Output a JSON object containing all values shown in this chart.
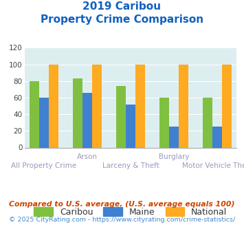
{
  "title_line1": "2019 Caribou",
  "title_line2": "Property Crime Comparison",
  "x_labels_row1": [
    "",
    "Arson",
    "",
    "Burglary",
    ""
  ],
  "x_labels_row2": [
    "All Property Crime",
    "",
    "Larceny & Theft",
    "",
    "Motor Vehicle Theft"
  ],
  "caribou": [
    80,
    83,
    74,
    60,
    60
  ],
  "maine": [
    60,
    66,
    52,
    25,
    25
  ],
  "national": [
    100,
    100,
    100,
    100,
    100
  ],
  "caribou_color": "#80c040",
  "maine_color": "#4080d0",
  "national_color": "#ffaa20",
  "bg_color": "#ddeef0",
  "ylim": [
    0,
    120
  ],
  "yticks": [
    0,
    20,
    40,
    60,
    80,
    100,
    120
  ],
  "title_color": "#1060c0",
  "xlabel_color": "#9999bb",
  "legend_labels": [
    "Caribou",
    "Maine",
    "National"
  ],
  "footnote1": "Compared to U.S. average. (U.S. average equals 100)",
  "footnote2": "© 2025 CityRating.com - https://www.cityrating.com/crime-statistics/",
  "footnote1_color": "#cc4400",
  "footnote2_color": "#4488cc",
  "bar_width": 0.22
}
